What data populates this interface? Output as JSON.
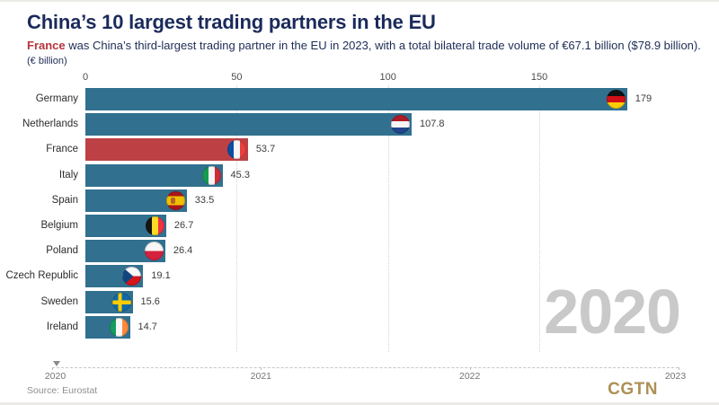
{
  "header": {
    "title": "China’s 10 largest trading partners in the EU",
    "subtitle_highlight": "France",
    "subtitle_rest": " was China’s third-largest trading partner in the EU in 2023, with a total bilateral trade volume of €67.1 billion ($78.9 billion).",
    "unit_label": "(€ billion)"
  },
  "chart_data": {
    "type": "bar",
    "orientation": "horizontal",
    "title": "China’s 10 largest trading partners in the EU",
    "unit": "€ billion",
    "categories": [
      "Germany",
      "Netherlands",
      "France",
      "Italy",
      "Spain",
      "Belgium",
      "Poland",
      "Czech Republic",
      "Sweden",
      "Ireland"
    ],
    "values": [
      179,
      107.8,
      53.7,
      45.3,
      33.5,
      26.7,
      26.4,
      19.1,
      15.6,
      14.7
    ],
    "value_labels": [
      "179",
      "107.8",
      "53.7",
      "45.3",
      "33.5",
      "26.7",
      "26.4",
      "19.1",
      "15.6",
      "14.7"
    ],
    "flag_icons": [
      "germany-flag",
      "netherlands-flag",
      "france-flag",
      "italy-flag",
      "spain-flag",
      "belgium-flag",
      "poland-flag",
      "czech-republic-flag",
      "sweden-flag",
      "ireland-flag"
    ],
    "highlight_category": "France",
    "bar_color": "#31708f",
    "highlight_bar_color": "#bd4044",
    "x_ticks": [
      "0",
      "50",
      "100",
      "150"
    ],
    "x_tick_values": [
      0,
      50,
      100,
      150
    ],
    "xlim": [
      0,
      196
    ],
    "grid": true,
    "legend": false,
    "watermark_year": "2020"
  },
  "timeline": {
    "years": [
      "2020",
      "2021",
      "2022",
      "2023"
    ],
    "selected_year": "2020"
  },
  "footer": {
    "source": "Source: Eurostat",
    "logo_text": "CGTN"
  }
}
